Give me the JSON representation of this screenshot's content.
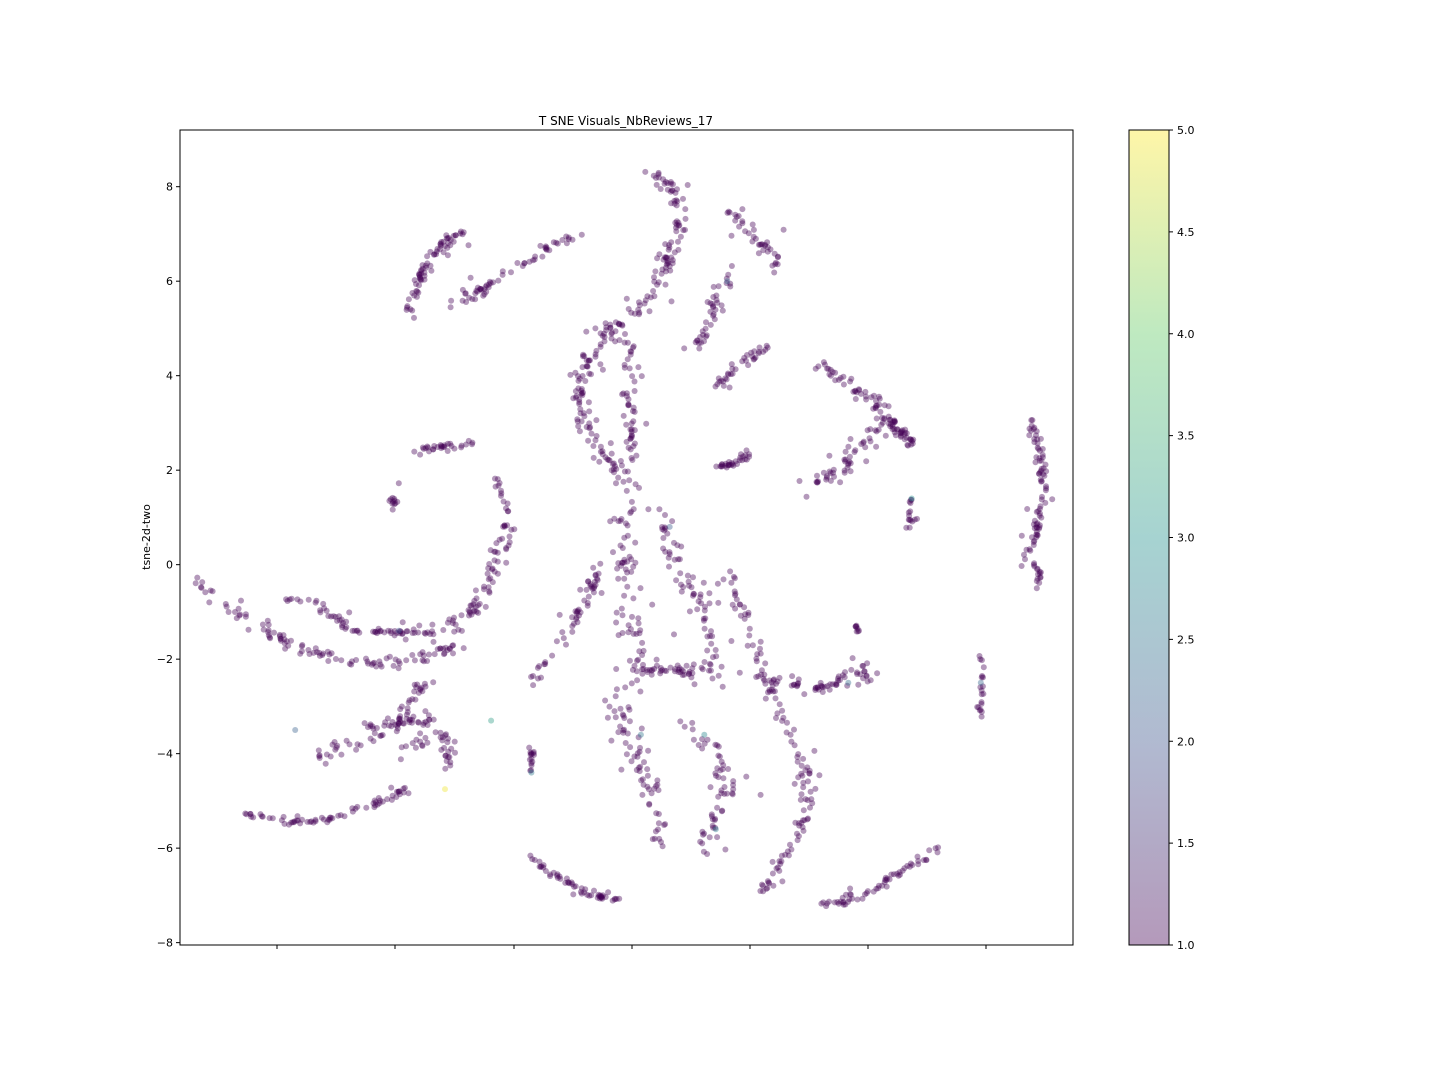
{
  "chart_data": {
    "type": "scatter",
    "title": "T SNE Visuals_NbReviews_17",
    "xlabel": "",
    "ylabel": "tsne-2d-two",
    "xlim": [
      -8.0,
      7.5
    ],
    "ylim": [
      -8.05,
      9.2
    ],
    "y_ticks": [
      8,
      6,
      4,
      2,
      0,
      -2,
      -4,
      -6,
      -8
    ],
    "y_tick_labels": [
      "8",
      "6",
      "4",
      "2",
      "0",
      "−2",
      "−4",
      "−6",
      "−8"
    ],
    "x_tick_count": 7,
    "x_tick_labels_shown": false,
    "grid": false,
    "point_alpha": 0.4,
    "colormap": "viridis",
    "color_variable_range": [
      1.0,
      5.0
    ],
    "colorbar": {
      "position": "right",
      "ticks": [
        1.0,
        1.5,
        2.0,
        2.5,
        3.0,
        3.5,
        4.0,
        4.5,
        5.0
      ],
      "tick_labels": [
        "1.0",
        "1.5",
        "2.0",
        "2.5",
        "3.0",
        "3.5",
        "4.0",
        "4.5",
        "5.0"
      ]
    },
    "colors": {
      "value_1": "#440154",
      "value_2": "#3b528b",
      "value_3": "#21918c",
      "value_4": "#5ec962",
      "value_5": "#fde725"
    },
    "clusters": [
      {
        "points": [
          [
            -4.0,
            5.3
          ],
          [
            -3.9,
            5.9
          ],
          [
            -3.7,
            6.4
          ],
          [
            -3.5,
            6.7
          ],
          [
            -3.3,
            6.9
          ],
          [
            -3.1,
            7.1
          ]
        ],
        "n": 70,
        "spread": 0.05
      },
      {
        "points": [
          [
            -3.2,
            5.5
          ],
          [
            -2.7,
            5.9
          ],
          [
            -2.3,
            6.2
          ],
          [
            -2.0,
            6.4
          ],
          [
            -1.5,
            6.8
          ],
          [
            -1.2,
            7.0
          ],
          [
            -0.9,
            7.1
          ]
        ],
        "n": 60,
        "spread": 0.05
      },
      {
        "points": [
          [
            0.1,
            8.4
          ],
          [
            0.5,
            8.1
          ],
          [
            0.7,
            7.4
          ],
          [
            0.5,
            6.6
          ],
          [
            0.3,
            5.9
          ],
          [
            0.0,
            5.4
          ],
          [
            -0.5,
            5.0
          ],
          [
            -0.8,
            4.5
          ],
          [
            -1.1,
            4.0
          ]
        ],
        "n": 140,
        "spread": 0.08
      },
      {
        "points": [
          [
            -1.1,
            4.0
          ],
          [
            -1.0,
            3.2
          ],
          [
            -0.8,
            2.5
          ],
          [
            -0.4,
            2.0
          ],
          [
            -0.2,
            1.7
          ]
        ],
        "n": 70,
        "spread": 0.08
      },
      {
        "points": [
          [
            -0.2,
            4.8
          ],
          [
            -0.2,
            4.0
          ],
          [
            -0.2,
            3.0
          ],
          [
            -0.1,
            2.2
          ]
        ],
        "n": 50,
        "spread": 0.06
      },
      {
        "points": [
          [
            1.5,
            7.5
          ],
          [
            1.8,
            7.1
          ],
          [
            2.1,
            6.8
          ],
          [
            2.4,
            6.3
          ]
        ],
        "n": 40,
        "spread": 0.06
      },
      {
        "points": [
          [
            1.0,
            4.6
          ],
          [
            1.2,
            5.2
          ],
          [
            1.3,
            5.7
          ],
          [
            1.5,
            6.1
          ]
        ],
        "n": 40,
        "spread": 0.05
      },
      {
        "points": [
          [
            1.3,
            3.7
          ],
          [
            1.6,
            4.1
          ],
          [
            1.9,
            4.4
          ],
          [
            2.2,
            4.6
          ]
        ],
        "n": 35,
        "spread": 0.05
      },
      {
        "points": [
          [
            1.3,
            2.1
          ],
          [
            1.6,
            2.1
          ],
          [
            1.9,
            2.3
          ]
        ],
        "n": 30,
        "spread": 0.05
      },
      {
        "points": [
          [
            3.0,
            4.3
          ],
          [
            3.5,
            3.9
          ],
          [
            4.0,
            3.5
          ],
          [
            4.4,
            3.0
          ],
          [
            4.7,
            2.5
          ]
        ],
        "n": 70,
        "spread": 0.06
      },
      {
        "points": [
          [
            3.0,
            1.6
          ],
          [
            3.5,
            2.1
          ],
          [
            3.9,
            2.6
          ],
          [
            4.2,
            3.0
          ],
          [
            4.6,
            2.6
          ]
        ],
        "n": 70,
        "spread": 0.1
      },
      {
        "points": [
          [
            6.7,
            3.2
          ],
          [
            6.9,
            2.6
          ],
          [
            7.0,
            1.8
          ],
          [
            6.9,
            1.0
          ],
          [
            6.8,
            0.4
          ],
          [
            6.6,
            0.0
          ]
        ],
        "n": 80,
        "spread": 0.04
      },
      {
        "points": [
          [
            6.9,
            0.0
          ],
          [
            6.9,
            -0.5
          ]
        ],
        "n": 15,
        "spread": 0.04
      },
      {
        "points": [
          [
            -3.9,
            2.4
          ],
          [
            -3.4,
            2.5
          ],
          [
            -2.9,
            2.6
          ]
        ],
        "n": 30,
        "spread": 0.04
      },
      {
        "points": [
          [
            -4.3,
            1.5
          ],
          [
            -4.3,
            1.2
          ]
        ],
        "n": 12,
        "spread": 0.04
      },
      {
        "points": [
          [
            -2.5,
            1.9
          ],
          [
            -2.3,
            1.2
          ],
          [
            -2.4,
            0.4
          ],
          [
            -2.6,
            -0.4
          ],
          [
            -2.8,
            -0.8
          ],
          [
            -3.1,
            -1.2
          ],
          [
            -3.4,
            -1.4
          ]
        ],
        "n": 80,
        "spread": 0.07
      },
      {
        "points": [
          [
            -7.7,
            -0.4
          ],
          [
            -7.2,
            -0.9
          ],
          [
            -6.5,
            -1.4
          ],
          [
            -5.8,
            -1.8
          ],
          [
            -5.0,
            -2.1
          ],
          [
            -4.2,
            -2.1
          ],
          [
            -3.6,
            -1.9
          ],
          [
            -3.2,
            -1.7
          ]
        ],
        "n": 110,
        "spread": 0.06
      },
      {
        "points": [
          [
            -6.2,
            -0.7
          ],
          [
            -5.7,
            -0.8
          ],
          [
            -5.0,
            -1.4
          ],
          [
            -4.5,
            -1.45
          ],
          [
            -4.0,
            -1.45
          ],
          [
            -3.6,
            -1.45
          ]
        ],
        "n": 70,
        "spread": 0.05
      },
      {
        "points": [
          [
            -2.0,
            -2.6
          ],
          [
            -1.6,
            -2.0
          ],
          [
            -1.2,
            -1.3
          ],
          [
            -0.9,
            -0.6
          ],
          [
            -0.7,
            0.0
          ]
        ],
        "n": 55,
        "spread": 0.06
      },
      {
        "points": [
          [
            -5.6,
            -4.0
          ],
          [
            -5.0,
            -3.8
          ],
          [
            -4.4,
            -3.5
          ],
          [
            -4.0,
            -2.9
          ],
          [
            -3.7,
            -2.4
          ]
        ],
        "n": 55,
        "spread": 0.07
      },
      {
        "points": [
          [
            -4.8,
            -3.4
          ],
          [
            -4.4,
            -3.4
          ],
          [
            -4.0,
            -3.3
          ],
          [
            -3.5,
            -3.3
          ]
        ],
        "n": 35,
        "spread": 0.05
      },
      {
        "points": [
          [
            -4.3,
            -4.0
          ],
          [
            -3.9,
            -3.8
          ],
          [
            -3.5,
            -3.6
          ],
          [
            -3.3,
            -4.0
          ],
          [
            -3.4,
            -4.6
          ]
        ],
        "n": 35,
        "spread": 0.06
      },
      {
        "points": [
          [
            -6.8,
            -5.3
          ],
          [
            -6.2,
            -5.45
          ],
          [
            -5.6,
            -5.45
          ],
          [
            -5.0,
            -5.2
          ],
          [
            -4.5,
            -5.0
          ],
          [
            -4.0,
            -4.7
          ]
        ],
        "n": 70,
        "spread": 0.04
      },
      {
        "points": [
          [
            -1.9,
            -3.9
          ],
          [
            -1.9,
            -4.2
          ],
          [
            -1.9,
            -4.4
          ]
        ],
        "n": 15,
        "spread": 0.03
      },
      {
        "points": [
          [
            -1.9,
            -6.2
          ],
          [
            -1.6,
            -6.5
          ],
          [
            -1.2,
            -6.8
          ],
          [
            -0.8,
            -7.0
          ],
          [
            -0.4,
            -7.1
          ]
        ],
        "n": 55,
        "spread": 0.04
      },
      {
        "points": [
          [
            -0.2,
            1.3
          ],
          [
            -0.3,
            0.6
          ],
          [
            -0.2,
            -0.2
          ],
          [
            -0.2,
            -1.1
          ],
          [
            -0.1,
            -1.9
          ],
          [
            -0.2,
            -2.6
          ],
          [
            -0.4,
            -3.2
          ],
          [
            -0.2,
            -3.9
          ],
          [
            0.1,
            -4.7
          ],
          [
            0.3,
            -5.3
          ],
          [
            0.4,
            -6.0
          ]
        ],
        "n": 140,
        "spread": 0.12
      },
      {
        "points": [
          [
            0.3,
            1.2
          ],
          [
            0.4,
            0.6
          ],
          [
            0.6,
            0.0
          ],
          [
            0.9,
            -0.6
          ],
          [
            1.1,
            -1.2
          ],
          [
            1.3,
            -1.8
          ],
          [
            1.2,
            -2.4
          ]
        ],
        "n": 70,
        "spread": 0.12
      },
      {
        "points": [
          [
            0.0,
            -2.2
          ],
          [
            0.5,
            -2.2
          ],
          [
            1.0,
            -2.3
          ]
        ],
        "n": 40,
        "spread": 0.05
      },
      {
        "points": [
          [
            1.5,
            -0.2
          ],
          [
            1.7,
            -0.8
          ],
          [
            1.9,
            -1.5
          ],
          [
            2.1,
            -2.2
          ],
          [
            2.3,
            -2.8
          ],
          [
            2.6,
            -3.5
          ],
          [
            2.8,
            -4.2
          ],
          [
            2.9,
            -4.9
          ],
          [
            2.8,
            -5.5
          ]
        ],
        "n": 90,
        "spread": 0.08
      },
      {
        "points": [
          [
            0.6,
            -3.3
          ],
          [
            1.0,
            -3.6
          ],
          [
            1.3,
            -4.0
          ],
          [
            1.5,
            -4.8
          ],
          [
            1.3,
            -5.5
          ],
          [
            1.1,
            -6.0
          ]
        ],
        "n": 60,
        "spread": 0.09
      },
      {
        "points": [
          [
            2.0,
            -2.4
          ],
          [
            2.4,
            -2.5
          ],
          [
            2.8,
            -2.6
          ],
          [
            3.2,
            -2.6
          ],
          [
            3.5,
            -2.5
          ]
        ],
        "n": 40,
        "spread": 0.05
      },
      {
        "points": [
          [
            3.4,
            -2.4
          ],
          [
            3.7,
            -2.2
          ],
          [
            3.9,
            -2.1
          ],
          [
            3.8,
            -2.5
          ],
          [
            3.6,
            -2.6
          ]
        ],
        "n": 25,
        "spread": 0.06
      },
      {
        "points": [
          [
            3.7,
            -1.3
          ],
          [
            3.8,
            -1.4
          ]
        ],
        "n": 8,
        "spread": 0.03
      },
      {
        "points": [
          [
            5.9,
            -2.0
          ],
          [
            5.9,
            -2.6
          ],
          [
            5.9,
            -3.2
          ]
        ],
        "n": 20,
        "spread": 0.03
      },
      {
        "points": [
          [
            2.0,
            -7.1
          ],
          [
            2.3,
            -6.6
          ],
          [
            2.6,
            -6.0
          ],
          [
            2.9,
            -5.4
          ]
        ],
        "n": 35,
        "spread": 0.04
      },
      {
        "points": [
          [
            3.1,
            -7.2
          ],
          [
            3.6,
            -7.1
          ],
          [
            4.0,
            -6.9
          ],
          [
            4.4,
            -6.6
          ],
          [
            4.8,
            -6.3
          ],
          [
            5.2,
            -6.0
          ]
        ],
        "n": 60,
        "spread": 0.04
      },
      {
        "points": [
          [
            4.7,
            1.4
          ],
          [
            4.7,
            1.0
          ],
          [
            4.6,
            0.8
          ]
        ],
        "n": 15,
        "spread": 0.04
      }
    ],
    "highlight_points": [
      {
        "x": -2.6,
        "y": -3.3,
        "value": 3.2
      },
      {
        "x": -4.2,
        "y": -1.4,
        "value": 2.0
      },
      {
        "x": 1.1,
        "y": -3.6,
        "value": 2.8
      },
      {
        "x": 4.7,
        "y": 1.4,
        "value": 3.0
      },
      {
        "x": -1.9,
        "y": -4.4,
        "value": 2.6
      },
      {
        "x": 0.0,
        "y": -3.6,
        "value": 2.5
      },
      {
        "x": 5.9,
        "y": -2.5,
        "value": 2.3
      },
      {
        "x": -3.4,
        "y": -4.75,
        "value": 4.9
      },
      {
        "x": 1.5,
        "y": 6.0,
        "value": 2.2
      },
      {
        "x": 0.5,
        "y": 0.8,
        "value": 2.1
      },
      {
        "x": 3.6,
        "y": -2.5,
        "value": 2.4
      },
      {
        "x": -6.0,
        "y": -3.5,
        "value": 2.2
      },
      {
        "x": 1.3,
        "y": -5.6,
        "value": 2.7
      }
    ]
  }
}
